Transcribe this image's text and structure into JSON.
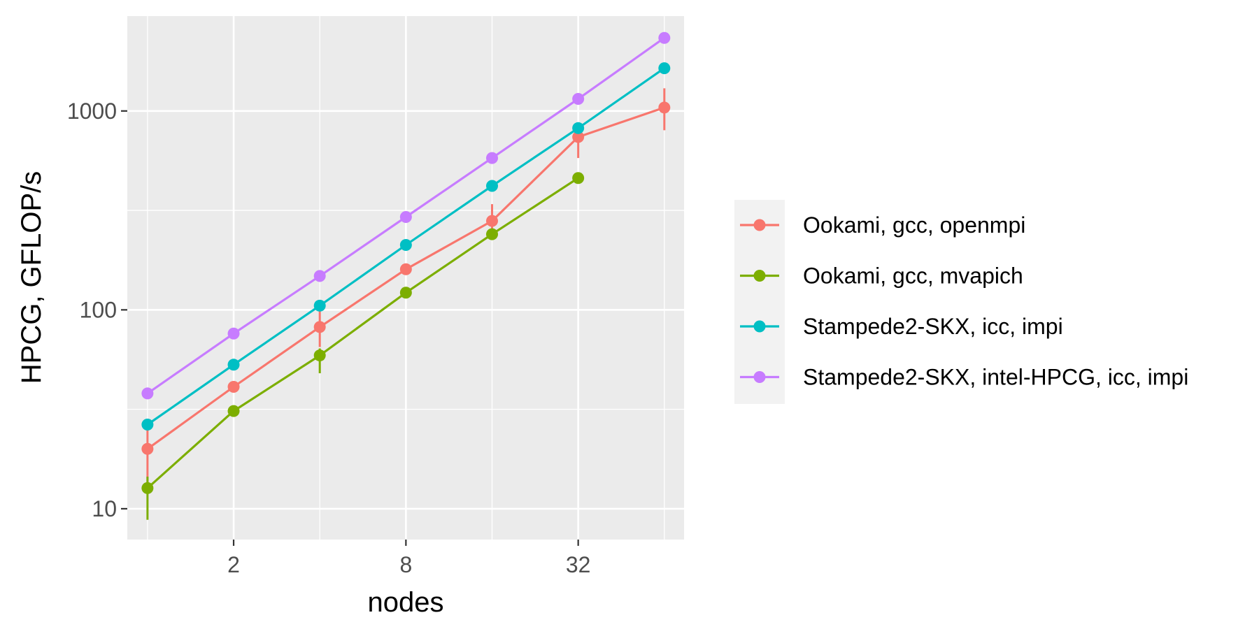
{
  "chart_data": {
    "type": "line",
    "xlabel": "nodes",
    "ylabel": "HPCG, GFLOP/s",
    "x_scale": "log2",
    "y_scale": "log10",
    "xlim": [
      0.85,
      75
    ],
    "ylim": [
      7,
      3000
    ],
    "x_ticks": [
      2,
      8,
      32
    ],
    "x_tick_labels": [
      "2",
      "8",
      "32"
    ],
    "y_ticks": [
      10,
      100,
      1000
    ],
    "y_tick_labels": [
      "10",
      "100",
      "1000"
    ],
    "grid": true,
    "legend_position": "right",
    "series": [
      {
        "name": "Ookami, gcc, openmpi",
        "color": "#F8766D",
        "x": [
          1,
          2,
          4,
          8,
          16,
          32,
          64
        ],
        "y": [
          20,
          41,
          82,
          160,
          280,
          740,
          1040
        ],
        "err_low": [
          13,
          null,
          65,
          null,
          235,
          580,
          800
        ],
        "err_high": [
          26,
          null,
          100,
          null,
          340,
          850,
          1300
        ]
      },
      {
        "name": "Ookami, gcc, mvapich",
        "color": "#7CAE00",
        "x": [
          1,
          2,
          4,
          8,
          16,
          32
        ],
        "y": [
          12.7,
          31,
          59,
          122,
          240,
          460
        ],
        "err_low": [
          8.8,
          null,
          48,
          null,
          null,
          null
        ],
        "err_high": [
          14.5,
          null,
          64,
          null,
          null,
          null
        ]
      },
      {
        "name": "Stampede2-SKX, icc, impi",
        "color": "#00BFC4",
        "x": [
          1,
          2,
          4,
          8,
          16,
          32,
          64
        ],
        "y": [
          26.5,
          53,
          105,
          212,
          420,
          820,
          1640
        ],
        "err_low": [
          null,
          null,
          null,
          null,
          null,
          null,
          null
        ],
        "err_high": [
          null,
          null,
          null,
          null,
          null,
          null,
          null
        ]
      },
      {
        "name": "Stampede2-SKX, intel-HPCG, icc, impi",
        "color": "#C77CFF",
        "x": [
          1,
          2,
          4,
          8,
          16,
          32,
          64
        ],
        "y": [
          38,
          76,
          148,
          293,
          580,
          1150,
          2330
        ],
        "err_low": [
          null,
          null,
          null,
          null,
          null,
          null,
          null
        ],
        "err_high": [
          null,
          null,
          null,
          null,
          null,
          null,
          null
        ]
      }
    ]
  }
}
